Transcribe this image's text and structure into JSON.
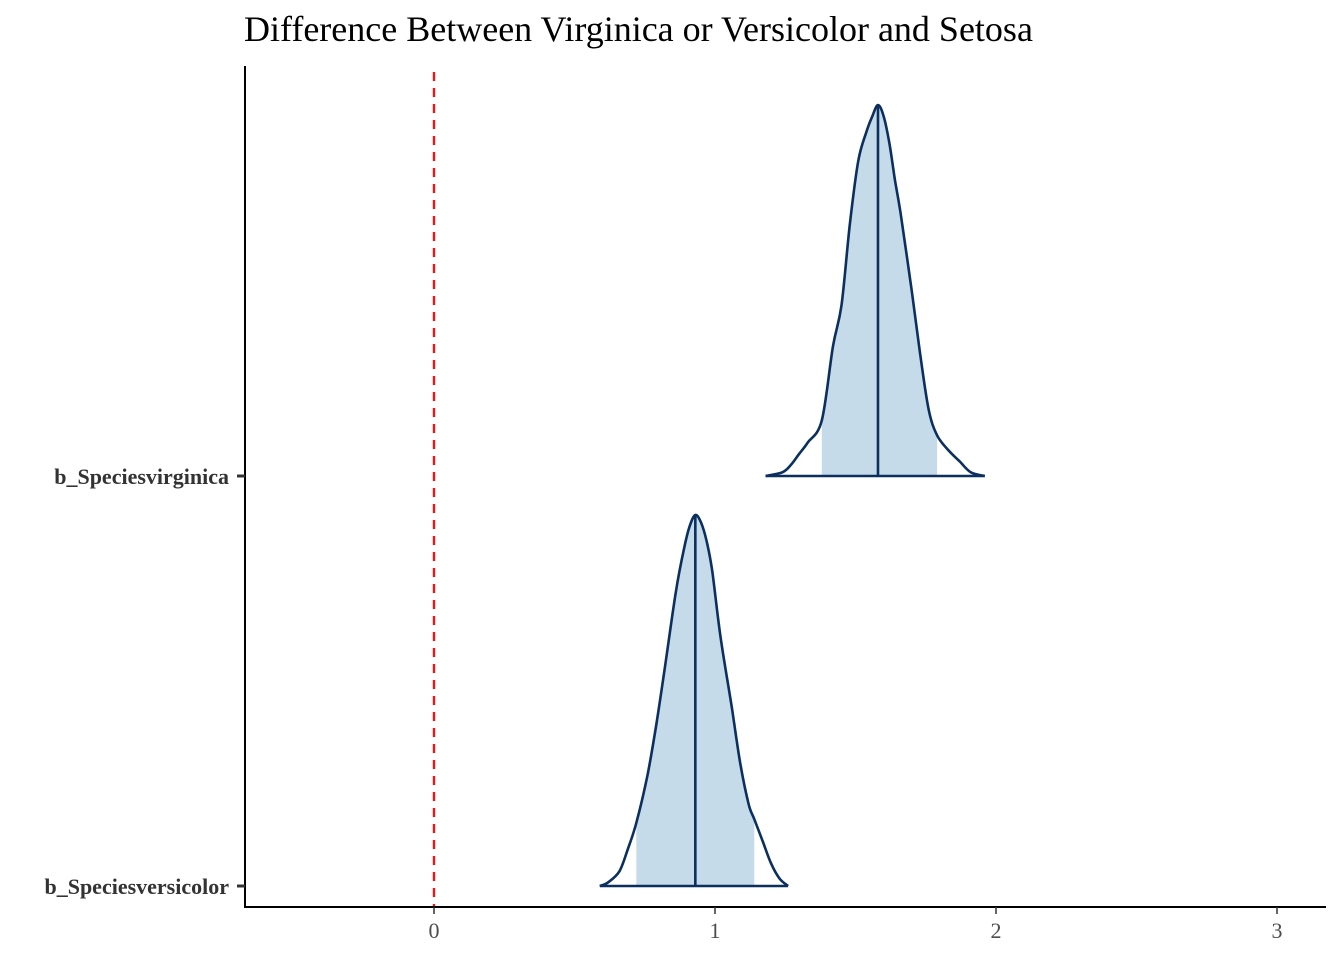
{
  "chart_data": {
    "type": "area",
    "title": "Difference Between Virginica or Versicolor and Setosa",
    "xlabel": "",
    "ylabel": "",
    "xlim": [
      -0.67,
      3.17
    ],
    "xticks": [
      0,
      1,
      2,
      3
    ],
    "xtick_labels": [
      "0",
      "1",
      "2",
      "3"
    ],
    "reference_line": {
      "x": 0,
      "style": "dashed",
      "color": "#e8171b"
    },
    "grid": false,
    "legend": "none",
    "colors": {
      "outline": "#0b2f5e",
      "interval_fill": "#c6dbea"
    },
    "series": [
      {
        "name": "b_Speciesvirginica",
        "median": 1.58,
        "interval": [
          1.38,
          1.79
        ],
        "range": [
          1.18,
          1.96
        ],
        "density": {
          "x": [
            1.18,
            1.24,
            1.27,
            1.3,
            1.33,
            1.38,
            1.42,
            1.45,
            1.48,
            1.51,
            1.54,
            1.56,
            1.58,
            1.6,
            1.62,
            1.64,
            1.66,
            1.7,
            1.73,
            1.76,
            1.79,
            1.83,
            1.87,
            1.91,
            1.96
          ],
          "y": [
            0.0,
            0.01,
            0.03,
            0.06,
            0.09,
            0.15,
            0.35,
            0.46,
            0.68,
            0.85,
            0.93,
            0.97,
            1.0,
            0.97,
            0.9,
            0.8,
            0.71,
            0.5,
            0.33,
            0.18,
            0.11,
            0.07,
            0.04,
            0.01,
            0.0
          ]
        }
      },
      {
        "name": "b_Speciesversicolor",
        "median": 0.93,
        "interval": [
          0.72,
          1.14
        ],
        "range": [
          0.59,
          1.26
        ],
        "density": {
          "x": [
            0.59,
            0.62,
            0.66,
            0.69,
            0.72,
            0.76,
            0.79,
            0.82,
            0.86,
            0.89,
            0.91,
            0.93,
            0.95,
            0.97,
            0.99,
            1.02,
            1.06,
            1.09,
            1.12,
            1.14,
            1.17,
            1.2,
            1.23,
            1.26
          ],
          "y": [
            0.0,
            0.01,
            0.04,
            0.1,
            0.17,
            0.3,
            0.43,
            0.58,
            0.79,
            0.91,
            0.97,
            1.0,
            0.98,
            0.93,
            0.85,
            0.67,
            0.48,
            0.33,
            0.22,
            0.18,
            0.12,
            0.06,
            0.02,
            0.0
          ]
        }
      }
    ]
  }
}
